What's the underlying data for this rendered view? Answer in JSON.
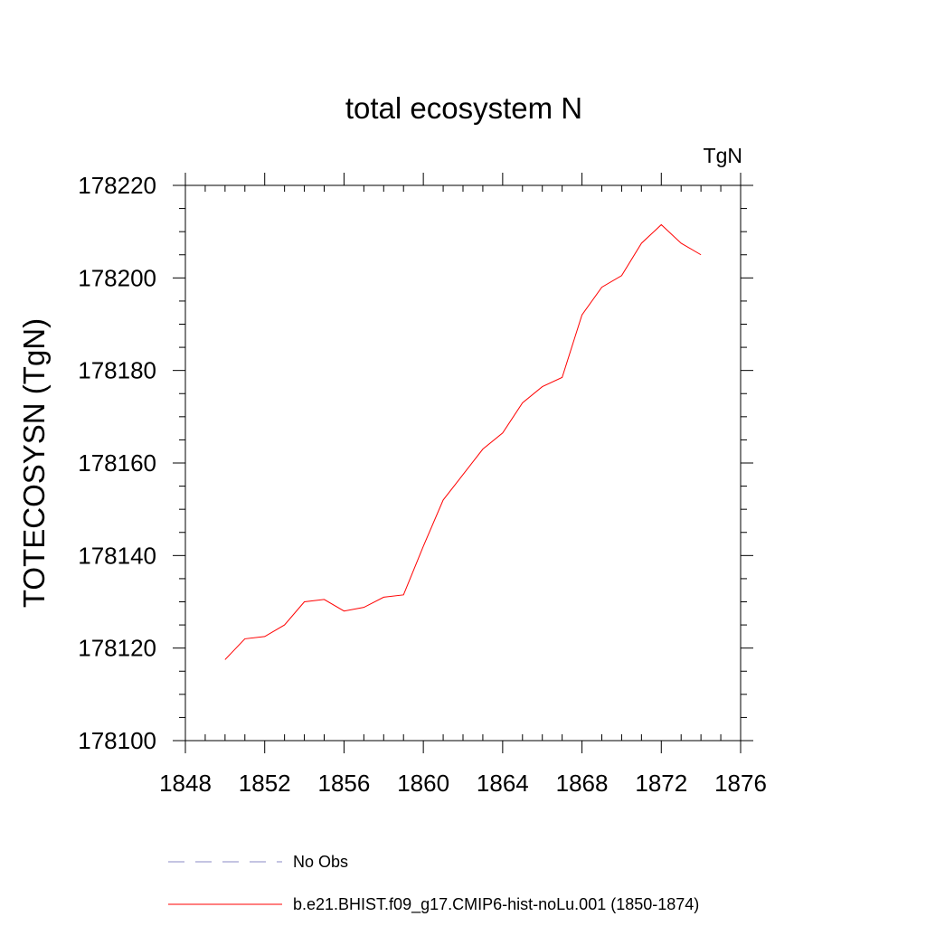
{
  "chart_data": {
    "type": "line",
    "title": "total ecosystem N",
    "units_label": "TgN",
    "xlabel": "",
    "ylabel": "TOTECOSYSN  (TgN)",
    "xlim": [
      1848,
      1876
    ],
    "ylim": [
      178100,
      178220
    ],
    "x_ticks": [
      1848,
      1852,
      1856,
      1860,
      1864,
      1868,
      1872,
      1876
    ],
    "y_ticks": [
      178100,
      178120,
      178140,
      178160,
      178180,
      178200,
      178220
    ],
    "x_minor_step": 1,
    "y_minor_step": 5,
    "grid": false,
    "legend_position": "bottom",
    "series": [
      {
        "name": "No Obs",
        "color": "#8a8ac4",
        "style": "dashed",
        "x": [],
        "y": []
      },
      {
        "name": "b.e21.BHIST.f09_g17.CMIP6-hist-noLu.001 (1850-1874)",
        "color": "#ff0000",
        "style": "solid",
        "x": [
          1850,
          1851,
          1852,
          1853,
          1854,
          1855,
          1856,
          1857,
          1858,
          1859,
          1860,
          1861,
          1862,
          1863,
          1864,
          1865,
          1866,
          1867,
          1868,
          1869,
          1870,
          1871,
          1872,
          1873,
          1874
        ],
        "y": [
          178117.5,
          178122,
          178122.5,
          178125,
          178130,
          178130.5,
          178128,
          178128.8,
          178131,
          178131.5,
          178142,
          178152,
          178157.5,
          178163,
          178166.5,
          178173,
          178176.5,
          178178.5,
          178192,
          178198,
          178200.5,
          178207.5,
          178211.5,
          178207.5,
          178205
        ]
      }
    ]
  }
}
